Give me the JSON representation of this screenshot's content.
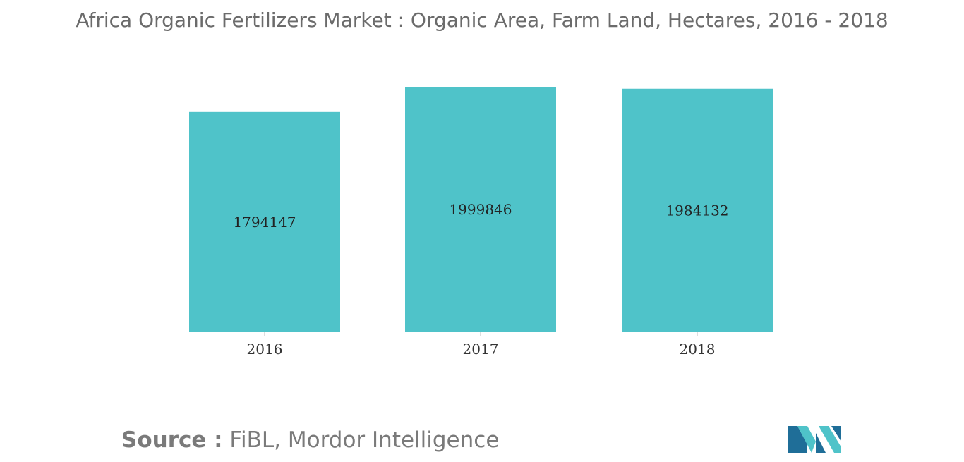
{
  "title": "Africa Organic Fertilizers Market : Organic Area, Farm Land, Hectares, 2016 - 2018",
  "source": {
    "label": "Source :",
    "text": " FiBL, Mordor Intelligence"
  },
  "colors": {
    "bar": "#4fc3c9",
    "title": "#6b6b6b",
    "source": "#7a7a7a",
    "logo_dark": "#1f6e98",
    "logo_light": "#4fc3c9"
  },
  "chart_data": {
    "type": "bar",
    "categories": [
      "2016",
      "2017",
      "2018"
    ],
    "values": [
      1794147,
      1999846,
      1984132
    ],
    "data_labels": [
      "1794147",
      "1999846",
      "1984132"
    ],
    "title": "Africa Organic Fertilizers Market : Organic Area, Farm Land, Hectares, 2016 - 2018",
    "xlabel": "",
    "ylabel": "",
    "ylim": [
      0,
      2000000
    ],
    "grid": false,
    "legend": "none"
  }
}
